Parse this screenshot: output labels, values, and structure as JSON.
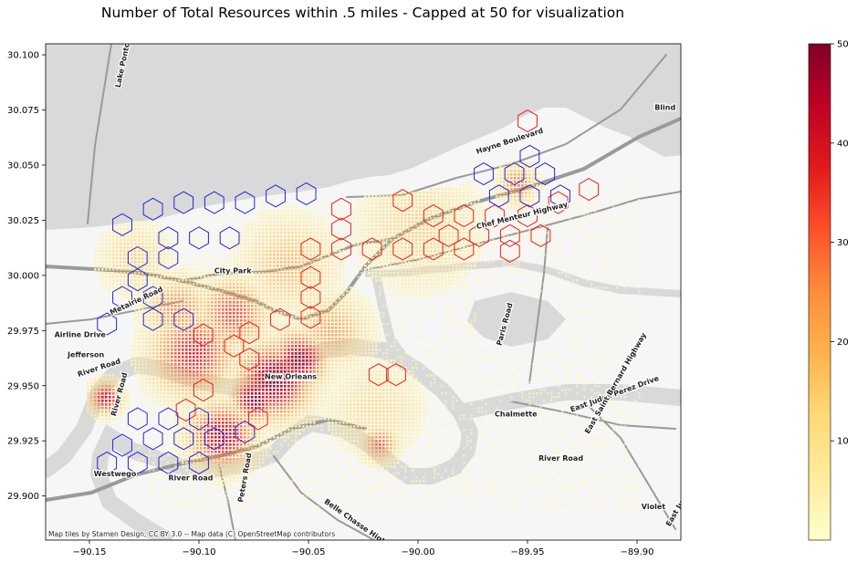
{
  "title": "Number of Total Resources within .5 miles - Capped at 50 for visualization",
  "attribution": "Map tiles by Stamen Design, CC BY 3.0 -- Map data (C) OpenStreetMap contributors",
  "colors": {
    "water": "#d9d9d9",
    "land": "#f6f6f6",
    "road": "#9a9a9a",
    "hex_red": "#e8201c",
    "hex_blue": "#1f26d6",
    "colormap": "YlOrRd"
  },
  "chart_data": {
    "type": "map",
    "xlim": [
      -90.17,
      -89.88
    ],
    "ylim": [
      29.88,
      30.105
    ],
    "x_ticks": [
      -90.15,
      -90.1,
      -90.05,
      -90.0,
      -89.95,
      -89.9
    ],
    "x_tick_labels": [
      "−90.15",
      "−90.10",
      "−90.05",
      "−90.00",
      "−89.95",
      "−89.90"
    ],
    "y_ticks": [
      29.9,
      29.925,
      29.95,
      29.975,
      30.0,
      30.025,
      30.05,
      30.075,
      30.1
    ],
    "y_tick_labels": [
      "29.900",
      "29.925",
      "29.950",
      "29.975",
      "30.000",
      "30.025",
      "30.050",
      "30.075",
      "30.100"
    ],
    "colorbar": {
      "min": 0,
      "max": 50,
      "ticks": [
        10,
        20,
        30,
        40,
        50
      ],
      "tick_labels": [
        "10",
        "20",
        "30",
        "40",
        "50"
      ]
    },
    "place_labels": [
      {
        "text": "Lake Pontchartrain Causeway",
        "lon": -90.136,
        "lat": 30.085,
        "rotate": -78
      },
      {
        "text": "Hayne Boulevard",
        "lon": -89.973,
        "lat": 30.055,
        "rotate": -18
      },
      {
        "text": "Blind",
        "lon": -89.892,
        "lat": 30.075,
        "rotate": 0
      },
      {
        "text": "Chef Menteur Highway",
        "lon": -89.973,
        "lat": 30.021,
        "rotate": -14
      },
      {
        "text": "City Park",
        "lon": -90.093,
        "lat": 30.001,
        "rotate": 0
      },
      {
        "text": "Metairie Road",
        "lon": -90.14,
        "lat": 29.982,
        "rotate": -25
      },
      {
        "text": "Airline Drive",
        "lon": -90.166,
        "lat": 29.972,
        "rotate": 0
      },
      {
        "text": "Jefferson",
        "lon": -90.16,
        "lat": 29.963,
        "rotate": 0
      },
      {
        "text": "River Road",
        "lon": -90.155,
        "lat": 29.954,
        "rotate": -18
      },
      {
        "text": "River Road",
        "lon": -90.138,
        "lat": 29.936,
        "rotate": -75
      },
      {
        "text": "New Orleans",
        "lon": -90.07,
        "lat": 29.953,
        "rotate": 0
      },
      {
        "text": "Paris Road",
        "lon": -89.962,
        "lat": 29.968,
        "rotate": -75
      },
      {
        "text": "Chalmette",
        "lon": -89.965,
        "lat": 29.936,
        "rotate": 0
      },
      {
        "text": "East Judge Perez Drive",
        "lon": -89.93,
        "lat": 29.938,
        "rotate": -20
      },
      {
        "text": "East Saint Bernard Highway",
        "lon": -89.922,
        "lat": 29.928,
        "rotate": -60
      },
      {
        "text": "River Road",
        "lon": -89.945,
        "lat": 29.916,
        "rotate": 0
      },
      {
        "text": "Westwego",
        "lon": -90.148,
        "lat": 29.909,
        "rotate": 0
      },
      {
        "text": "River Road",
        "lon": -90.114,
        "lat": 29.907,
        "rotate": 0
      },
      {
        "text": "Belle Chasse Highway",
        "lon": -90.043,
        "lat": 29.897,
        "rotate": 35
      },
      {
        "text": "Peters Road",
        "lon": -90.08,
        "lat": 29.897,
        "rotate": -80
      },
      {
        "text": "Violet",
        "lon": -89.898,
        "lat": 29.894,
        "rotate": 0
      },
      {
        "text": "East Judge",
        "lon": -89.885,
        "lat": 29.886,
        "rotate": -60
      }
    ],
    "hexagon_groups": [
      {
        "name": "red",
        "color": "#e8201c",
        "centers": [
          [
            -89.95,
            30.07
          ],
          [
            -89.922,
            30.039
          ],
          [
            -89.936,
            30.033
          ],
          [
            -89.95,
            30.027
          ],
          [
            -89.944,
            30.018
          ],
          [
            -89.958,
            30.018
          ],
          [
            -89.972,
            30.018
          ],
          [
            -89.986,
            30.018
          ],
          [
            -89.965,
            30.027
          ],
          [
            -89.979,
            30.027
          ],
          [
            -89.993,
            30.027
          ],
          [
            -89.993,
            30.012
          ],
          [
            -90.007,
            30.012
          ],
          [
            -90.021,
            30.012
          ],
          [
            -90.035,
            30.012
          ],
          [
            -90.049,
            30.012
          ],
          [
            -90.035,
            30.021
          ],
          [
            -90.035,
            30.03
          ],
          [
            -90.007,
            30.034
          ],
          [
            -89.979,
            30.012
          ],
          [
            -89.958,
            30.011
          ],
          [
            -90.049,
            29.999
          ],
          [
            -90.049,
            29.99
          ],
          [
            -90.049,
            29.981
          ],
          [
            -90.063,
            29.98
          ],
          [
            -90.077,
            29.974
          ],
          [
            -90.084,
            29.968
          ],
          [
            -90.077,
            29.962
          ],
          [
            -90.098,
            29.973
          ],
          [
            -90.098,
            29.948
          ],
          [
            -90.106,
            29.939
          ],
          [
            -90.073,
            29.935
          ],
          [
            -90.018,
            29.955
          ],
          [
            -90.01,
            29.955
          ]
        ]
      },
      {
        "name": "blue",
        "color": "#1f26d6",
        "centers": [
          [
            -89.949,
            30.054
          ],
          [
            -89.956,
            30.046
          ],
          [
            -89.942,
            30.046
          ],
          [
            -89.963,
            30.036
          ],
          [
            -89.949,
            30.036
          ],
          [
            -89.935,
            30.036
          ],
          [
            -89.97,
            30.046
          ],
          [
            -90.107,
            30.033
          ],
          [
            -90.093,
            30.033
          ],
          [
            -90.079,
            30.033
          ],
          [
            -90.065,
            30.036
          ],
          [
            -90.051,
            30.037
          ],
          [
            -90.121,
            30.03
          ],
          [
            -90.135,
            30.023
          ],
          [
            -90.114,
            30.017
          ],
          [
            -90.1,
            30.017
          ],
          [
            -90.086,
            30.017
          ],
          [
            -90.114,
            30.008
          ],
          [
            -90.128,
            30.008
          ],
          [
            -90.128,
            29.998
          ],
          [
            -90.121,
            29.99
          ],
          [
            -90.135,
            29.99
          ],
          [
            -90.121,
            29.98
          ],
          [
            -90.107,
            29.98
          ],
          [
            -90.142,
            29.978
          ],
          [
            -90.128,
            29.935
          ],
          [
            -90.114,
            29.935
          ],
          [
            -90.1,
            29.935
          ],
          [
            -90.121,
            29.926
          ],
          [
            -90.107,
            29.926
          ],
          [
            -90.093,
            29.926
          ],
          [
            -90.079,
            29.929
          ],
          [
            -90.135,
            29.923
          ],
          [
            -90.142,
            29.915
          ],
          [
            -90.128,
            29.915
          ],
          [
            -90.114,
            29.915
          ],
          [
            -90.1,
            29.915
          ]
        ]
      }
    ],
    "density_hotspots": [
      {
        "lon": -90.066,
        "lat": 29.953,
        "value": 50,
        "spread": 0.016
      },
      {
        "lon": -90.075,
        "lat": 29.945,
        "value": 50,
        "spread": 0.01
      },
      {
        "lon": -90.055,
        "lat": 29.962,
        "value": 48,
        "spread": 0.012
      },
      {
        "lon": -90.09,
        "lat": 29.928,
        "value": 44,
        "spread": 0.014
      },
      {
        "lon": -90.143,
        "lat": 29.945,
        "value": 42,
        "spread": 0.007
      },
      {
        "lon": -90.103,
        "lat": 29.965,
        "value": 38,
        "spread": 0.018
      },
      {
        "lon": -90.085,
        "lat": 29.983,
        "value": 33,
        "spread": 0.015
      },
      {
        "lon": -90.11,
        "lat": 29.985,
        "value": 26,
        "spread": 0.014
      },
      {
        "lon": -90.018,
        "lat": 29.924,
        "value": 30,
        "spread": 0.008
      },
      {
        "lon": -90.04,
        "lat": 29.975,
        "value": 22,
        "spread": 0.016
      },
      {
        "lon": -89.955,
        "lat": 30.042,
        "value": 28,
        "spread": 0.008
      },
      {
        "lon": -90.06,
        "lat": 30.005,
        "value": 18,
        "spread": 0.02
      },
      {
        "lon": -90.0,
        "lat": 30.022,
        "value": 14,
        "spread": 0.025
      },
      {
        "lon": -90.13,
        "lat": 30.008,
        "value": 14,
        "spread": 0.015
      },
      {
        "lon": -90.02,
        "lat": 29.94,
        "value": 12,
        "spread": 0.02
      }
    ]
  }
}
